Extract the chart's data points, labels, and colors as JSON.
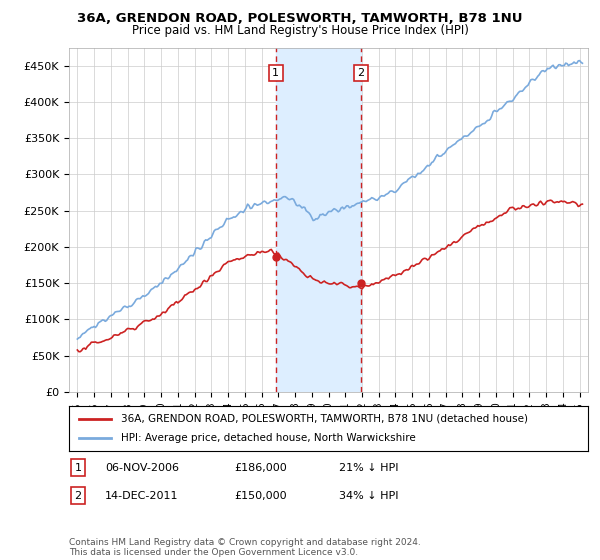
{
  "title1": "36A, GRENDON ROAD, POLESWORTH, TAMWORTH, B78 1NU",
  "title2": "Price paid vs. HM Land Registry's House Price Index (HPI)",
  "ylabel_ticks": [
    "£0",
    "£50K",
    "£100K",
    "£150K",
    "£200K",
    "£250K",
    "£300K",
    "£350K",
    "£400K",
    "£450K"
  ],
  "ylabel_values": [
    0,
    50000,
    100000,
    150000,
    200000,
    250000,
    300000,
    350000,
    400000,
    450000
  ],
  "ylim": [
    0,
    475000
  ],
  "xlim_start": 1994.5,
  "xlim_end": 2025.5,
  "sale1_x": 2006.85,
  "sale1_y": 186000,
  "sale1_label": "1",
  "sale1_date": "06-NOV-2006",
  "sale1_price": "£186,000",
  "sale1_hpi": "21% ↓ HPI",
  "sale2_x": 2011.95,
  "sale2_y": 150000,
  "sale2_label": "2",
  "sale2_date": "14-DEC-2011",
  "sale2_price": "£150,000",
  "sale2_hpi": "34% ↓ HPI",
  "hpi_line_color": "#7aaadd",
  "price_line_color": "#cc2222",
  "shade_color": "#ddeeff",
  "dashed_line_color": "#cc2222",
  "legend_label1": "36A, GRENDON ROAD, POLESWORTH, TAMWORTH, B78 1NU (detached house)",
  "legend_label2": "HPI: Average price, detached house, North Warwickshire",
  "footnote": "Contains HM Land Registry data © Crown copyright and database right 2024.\nThis data is licensed under the Open Government Licence v3.0.",
  "background_color": "#ffffff",
  "grid_color": "#cccccc"
}
